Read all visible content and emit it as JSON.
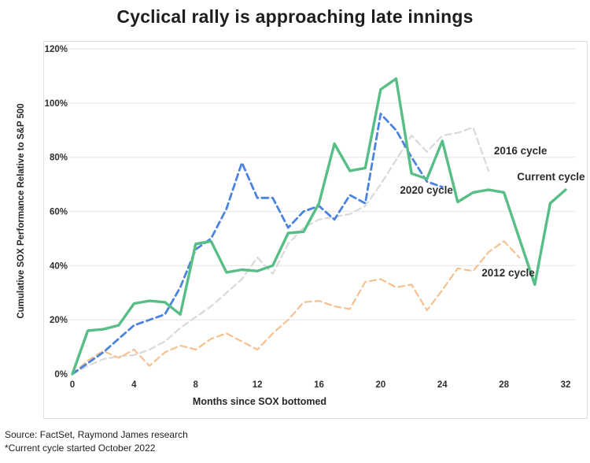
{
  "page": {
    "title": "Cyclical rally is approaching late innings",
    "footer_lines": [
      "Source: FactSet, Raymond James research",
      "*Current cycle started October 2022"
    ]
  },
  "chart_data": {
    "type": "line",
    "title": "Cyclical rally is approaching late innings",
    "xlabel": "Months since SOX bottomed",
    "ylabel": "Cumulative SOX Performance Relative to S&P 500",
    "xlim": [
      0,
      32
    ],
    "ylim": [
      0,
      120
    ],
    "xticks": [
      0,
      4,
      8,
      12,
      16,
      20,
      24,
      28,
      32
    ],
    "yticks": [
      0,
      20,
      40,
      60,
      80,
      100,
      120
    ],
    "ytick_suffix": "%",
    "grid": "horizontal-only",
    "legend": "inline-annotations",
    "colors": {
      "current": "#57BE85",
      "cycle2020": "#4C83DF",
      "cycle2016": "#D9D9D9",
      "cycle2012": "#F6C18F",
      "gridline": "#EBEBEB",
      "frame": "#E0E0E0",
      "text": "#2b2b2b"
    },
    "series": [
      {
        "name": "2016 cycle",
        "color": "#D9D9D9",
        "style": "dashed",
        "width": 2.2,
        "start_month": 0,
        "month_step": 1,
        "values": [
          0,
          3,
          5.5,
          6.5,
          7,
          9,
          12,
          17,
          21,
          25,
          30,
          35,
          43,
          37,
          48,
          54,
          57,
          58,
          59,
          62,
          70,
          79,
          88,
          82,
          88,
          89,
          91,
          75
        ]
      },
      {
        "name": "2012 cycle",
        "color": "#F6C18F",
        "style": "dashed",
        "width": 2.2,
        "start_month": 0,
        "month_step": 1,
        "values": [
          0,
          5,
          8.5,
          6,
          9,
          3,
          8,
          10.5,
          9,
          13,
          15,
          12,
          9,
          15,
          20,
          26.5,
          27,
          25,
          24,
          34,
          35,
          32,
          33,
          23.5,
          31,
          39,
          38,
          45,
          49,
          43
        ]
      },
      {
        "name": "2020 cycle",
        "color": "#4C83DF",
        "style": "dashed",
        "width": 2.8,
        "start_month": 0,
        "month_step": 1,
        "values": [
          0,
          4,
          8,
          13,
          18,
          20,
          22,
          32,
          46,
          50,
          61,
          78,
          65,
          65,
          54,
          60,
          62,
          57,
          66,
          63,
          96,
          90,
          80,
          71,
          69
        ]
      },
      {
        "name": "Current cycle",
        "color": "#57BE85",
        "style": "solid",
        "width": 3.4,
        "start_month": 0,
        "month_step": 1,
        "values": [
          0,
          16,
          16.5,
          18,
          26,
          27,
          26.5,
          22,
          48,
          49,
          37.5,
          38.5,
          38,
          40,
          52,
          52.5,
          63,
          85,
          75,
          76,
          105,
          109,
          74,
          72,
          86,
          63.5,
          67,
          68,
          67,
          50,
          33,
          63,
          68
        ]
      }
    ],
    "annotations": [
      {
        "label": "2016 cycle",
        "month": 27.35,
        "value": 81
      },
      {
        "label": "Current cycle",
        "month": 28.85,
        "value": 71.5
      },
      {
        "label": "2020 cycle",
        "month": 21.25,
        "value": 66.5
      },
      {
        "label": "2012 cycle",
        "month": 26.55,
        "value": 36
      }
    ]
  }
}
